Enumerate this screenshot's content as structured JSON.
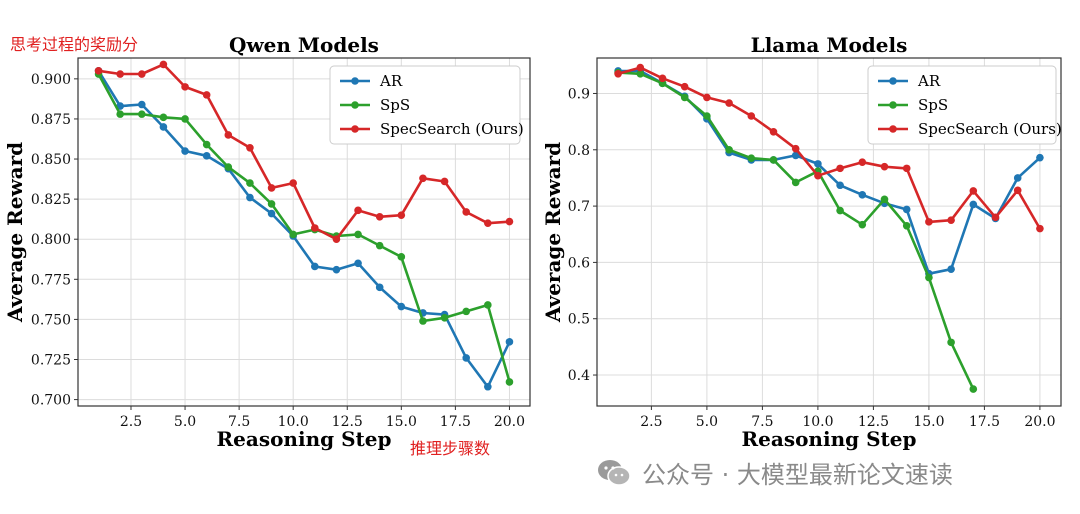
{
  "annotations": {
    "top_left_note": "思考过程的奖励分",
    "bottom_note": "推理步骤数"
  },
  "watermark": {
    "text": "公众号 · 大模型最新论文速读",
    "icon": "wechat-icon"
  },
  "colors": {
    "AR": "#1f77b4",
    "SpS": "#2ca02c",
    "SpecSearch (Ours)": "#d62728"
  },
  "chart_data": [
    {
      "type": "line",
      "title": "Qwen Models",
      "xlabel": "Reasoning Step",
      "ylabel": "Average Reward",
      "xlim": [
        0.05,
        20.95
      ],
      "ylim": [
        0.696,
        0.913
      ],
      "xticks": [
        "2.5",
        "5.0",
        "7.5",
        "10.0",
        "12.5",
        "15.0",
        "17.5",
        "20.0"
      ],
      "yticks": [
        "0.700",
        "0.725",
        "0.750",
        "0.775",
        "0.800",
        "0.825",
        "0.850",
        "0.875",
        "0.900"
      ],
      "grid": true,
      "legend_position": "top-right",
      "series": [
        {
          "name": "AR",
          "x": [
            1,
            2,
            3,
            4,
            5,
            6,
            7,
            8,
            9,
            10,
            11,
            12,
            13,
            14,
            15,
            16,
            17,
            18,
            19,
            20
          ],
          "values": [
            0.905,
            0.883,
            0.884,
            0.87,
            0.855,
            0.852,
            0.844,
            0.826,
            0.816,
            0.802,
            0.783,
            0.781,
            0.785,
            0.77,
            0.758,
            0.754,
            0.753,
            0.726,
            0.708,
            0.736
          ]
        },
        {
          "name": "SpS",
          "x": [
            1,
            2,
            3,
            4,
            5,
            6,
            7,
            8,
            9,
            10,
            11,
            12,
            13,
            14,
            15,
            16,
            17,
            18,
            19,
            20
          ],
          "values": [
            0.903,
            0.878,
            0.878,
            0.876,
            0.875,
            0.859,
            0.845,
            0.835,
            0.822,
            0.803,
            0.806,
            0.802,
            0.803,
            0.796,
            0.789,
            0.749,
            0.751,
            0.755,
            0.759,
            0.711
          ]
        },
        {
          "name": "SpecSearch (Ours)",
          "x": [
            1,
            2,
            3,
            4,
            5,
            6,
            7,
            8,
            9,
            10,
            11,
            12,
            13,
            14,
            15,
            16,
            17,
            18,
            19,
            20
          ],
          "values": [
            0.905,
            0.903,
            0.903,
            0.909,
            0.895,
            0.89,
            0.865,
            0.857,
            0.832,
            0.835,
            0.807,
            0.8,
            0.818,
            0.814,
            0.815,
            0.838,
            0.836,
            0.817,
            0.81,
            0.811
          ]
        }
      ]
    },
    {
      "type": "line",
      "title": "Llama Models",
      "xlabel": "Reasoning Step",
      "ylabel": "Average Reward",
      "xlim": [
        0.05,
        20.95
      ],
      "ylim": [
        0.345,
        0.963
      ],
      "xticks": [
        "2.5",
        "5.0",
        "7.5",
        "10.0",
        "12.5",
        "15.0",
        "17.5",
        "20.0"
      ],
      "yticks": [
        "0.4",
        "0.5",
        "0.6",
        "0.7",
        "0.8",
        "0.9"
      ],
      "grid": true,
      "legend_position": "top-right",
      "series": [
        {
          "name": "AR",
          "x": [
            1,
            2,
            3,
            4,
            5,
            6,
            7,
            8,
            9,
            10,
            11,
            12,
            13,
            14,
            15,
            16,
            17,
            18,
            19,
            20
          ],
          "values": [
            0.94,
            0.94,
            0.918,
            0.895,
            0.855,
            0.795,
            0.782,
            0.782,
            0.79,
            0.775,
            0.737,
            0.72,
            0.705,
            0.694,
            0.58,
            0.588,
            0.703,
            0.678,
            0.75,
            0.786
          ]
        },
        {
          "name": "SpS",
          "x": [
            1,
            2,
            3,
            4,
            5,
            6,
            7,
            8,
            9,
            10,
            11,
            12,
            13,
            14,
            15,
            16,
            17
          ],
          "values": [
            0.937,
            0.935,
            0.918,
            0.893,
            0.86,
            0.8,
            0.785,
            0.782,
            0.742,
            0.762,
            0.692,
            0.667,
            0.712,
            0.665,
            0.573,
            0.458,
            0.375
          ]
        },
        {
          "name": "SpecSearch (Ours)",
          "x": [
            1,
            2,
            3,
            4,
            5,
            6,
            7,
            8,
            9,
            10,
            11,
            12,
            13,
            14,
            15,
            16,
            17,
            18,
            19,
            20
          ],
          "values": [
            0.935,
            0.946,
            0.927,
            0.912,
            0.893,
            0.883,
            0.86,
            0.832,
            0.802,
            0.754,
            0.767,
            0.778,
            0.77,
            0.767,
            0.672,
            0.675,
            0.727,
            0.68,
            0.728,
            0.66
          ]
        }
      ]
    }
  ]
}
